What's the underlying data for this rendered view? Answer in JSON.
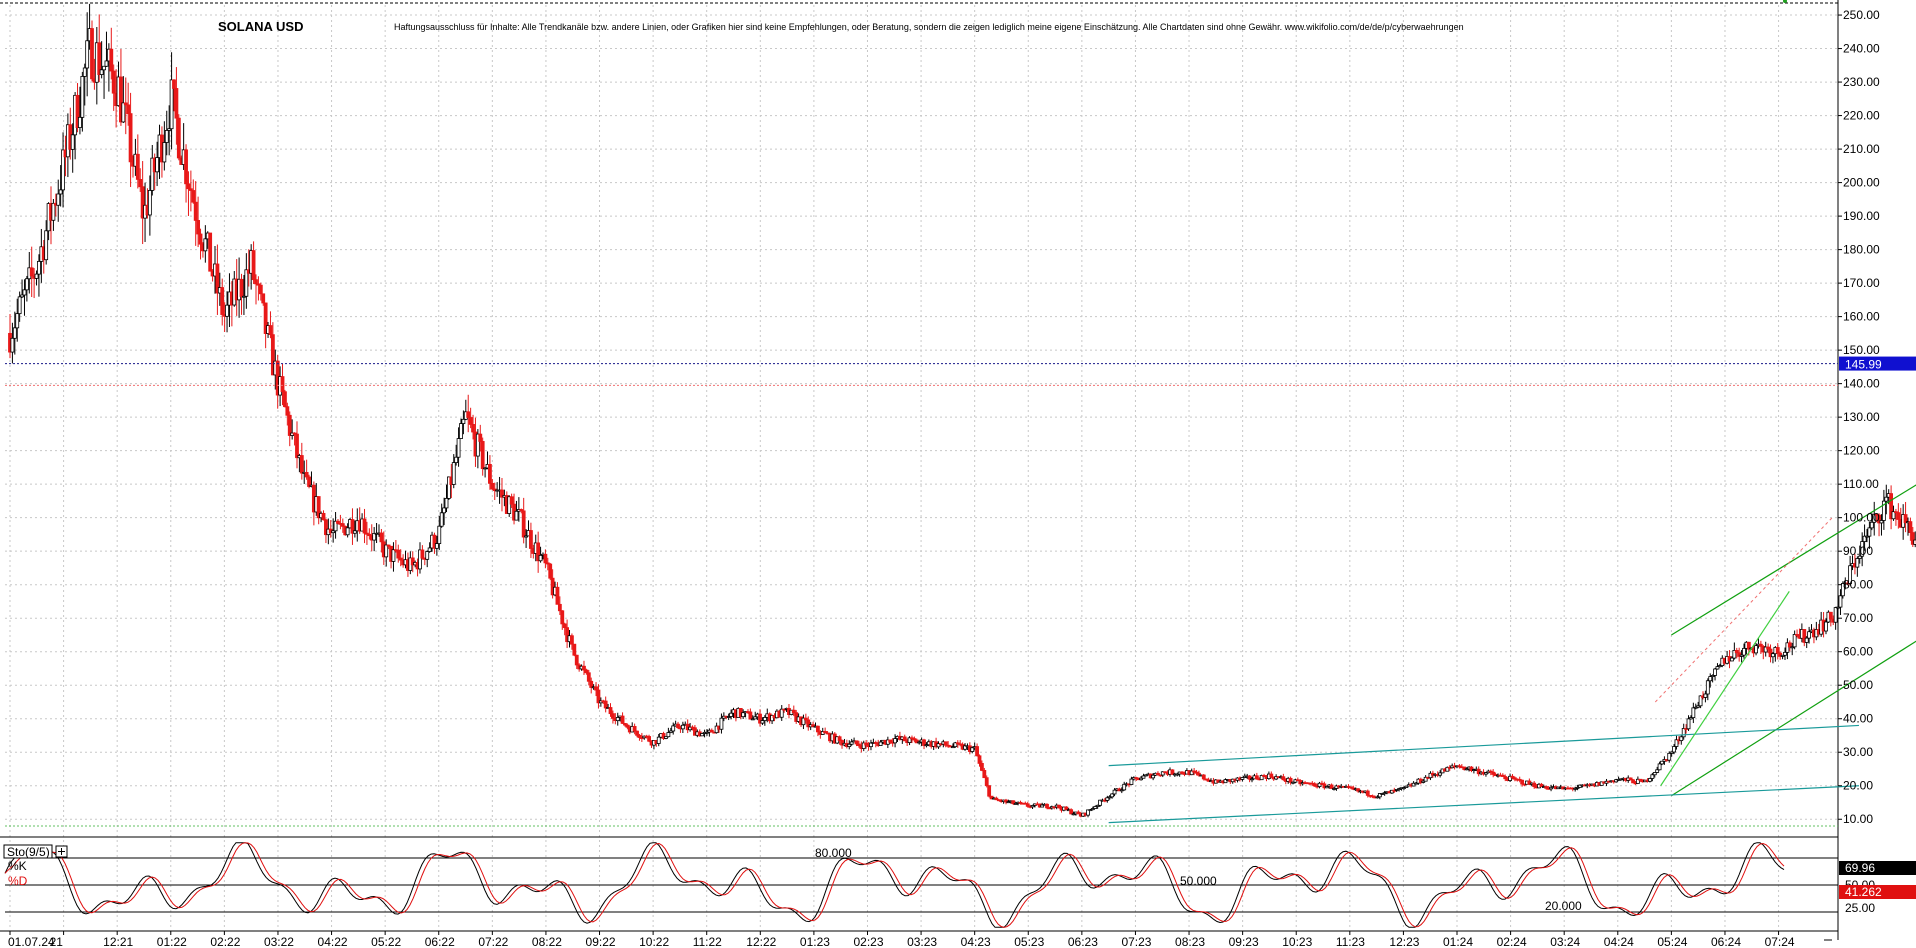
{
  "chart_data": [
    {
      "type": "candlestick",
      "title": "SOLANA USD",
      "disclaimer": "Haftungsausschluss für Inhalte: Alle Trendkanäle bzw. andere Linien, oder Grafiken hier sind keine Empfehlungen, oder Beratung, sondern die zeigen lediglich meine eigene Einschätzung. Alle Chartdaten sind ohne Gewähr.  www.wikifolio.com/de/de/p/cyberwaehrungen",
      "ylim": [
        5,
        253
      ],
      "y_ticks": [
        10,
        20,
        30,
        40,
        50,
        60,
        70,
        80,
        90,
        100,
        110,
        120,
        130,
        140,
        150,
        160,
        170,
        180,
        190,
        200,
        210,
        220,
        230,
        240,
        250
      ],
      "y_tick_labels": [
        "10.00",
        "20.00",
        "30.00",
        "40.00",
        "50.00",
        "60.00",
        "70.00",
        "80.00",
        "90.00",
        "100.00",
        "110.00",
        "120.00",
        "130.00",
        "140.00",
        "150.00",
        "160.00",
        "170.00",
        "180.00",
        "190.00",
        "200.00",
        "210.00",
        "220.00",
        "230.00",
        "240.00",
        "250.00"
      ],
      "x_labels": [
        "01.07.24",
        "21",
        "12:21",
        "01:22",
        "02:22",
        "03:22",
        "04:22",
        "05:22",
        "06:22",
        "07:22",
        "08:22",
        "09:22",
        "10:22",
        "11:22",
        "12:22",
        "01:23",
        "02:23",
        "03:23",
        "04:23",
        "05:23",
        "06:23",
        "07:23",
        "08:23",
        "09:23",
        "10:23",
        "11:23",
        "12:23",
        "01:24",
        "02:24",
        "03:24",
        "04:24",
        "05:24",
        "06:24",
        "07:24"
      ],
      "price_path": [
        [
          0,
          155
        ],
        [
          0.5,
          175
        ],
        [
          1,
          205
        ],
        [
          1.5,
          240
        ],
        [
          2,
          230
        ],
        [
          2.5,
          190
        ],
        [
          3,
          225
        ],
        [
          3.5,
          190
        ],
        [
          4,
          160
        ],
        [
          4.5,
          175
        ],
        [
          5,
          140
        ],
        [
          5.5,
          110
        ],
        [
          6,
          95
        ],
        [
          6.5,
          100
        ],
        [
          7,
          90
        ],
        [
          7.5,
          85
        ],
        [
          8,
          95
        ],
        [
          8.5,
          130
        ],
        [
          9,
          110
        ],
        [
          9.5,
          100
        ],
        [
          10,
          85
        ],
        [
          10.5,
          60
        ],
        [
          11,
          45
        ],
        [
          11.5,
          38
        ],
        [
          12,
          33
        ],
        [
          12.5,
          38
        ],
        [
          13,
          35
        ],
        [
          13.5,
          42
        ],
        [
          14,
          40
        ],
        [
          14.5,
          42
        ],
        [
          15,
          37
        ],
        [
          15.5,
          33
        ],
        [
          16,
          32
        ],
        [
          16.5,
          34
        ],
        [
          17,
          33
        ],
        [
          17.5,
          32
        ],
        [
          18,
          31
        ],
        [
          18.3,
          16
        ],
        [
          19,
          14
        ],
        [
          19.5,
          14
        ],
        [
          20,
          11
        ],
        [
          20.5,
          17
        ],
        [
          21,
          22
        ],
        [
          21.5,
          24
        ],
        [
          22,
          24
        ],
        [
          22.5,
          21
        ],
        [
          23,
          22
        ],
        [
          23.5,
          23
        ],
        [
          24,
          21
        ],
        [
          24.5,
          20
        ],
        [
          25,
          19
        ],
        [
          25.5,
          17
        ],
        [
          26,
          19
        ],
        [
          26.5,
          23
        ],
        [
          27,
          26
        ],
        [
          27.5,
          24
        ],
        [
          28,
          22
        ],
        [
          28.5,
          20
        ],
        [
          29,
          19
        ],
        [
          29.5,
          20
        ],
        [
          30,
          22
        ],
        [
          30.5,
          21
        ],
        [
          31,
          30
        ],
        [
          31.5,
          45
        ],
        [
          32,
          58
        ],
        [
          32.5,
          62
        ],
        [
          33,
          60
        ],
        [
          33.5,
          65
        ],
        [
          34,
          70
        ],
        [
          34.5,
          90
        ],
        [
          35,
          105
        ],
        [
          35.5,
          95
        ],
        [
          36,
          85
        ],
        [
          36.5,
          95
        ],
        [
          37,
          100
        ],
        [
          37.5,
          102
        ],
        [
          38,
          110
        ],
        [
          38.5,
          105
        ],
        [
          39,
          130
        ],
        [
          39.5,
          145
        ],
        [
          40,
          170
        ],
        [
          40.5,
          185
        ],
        [
          41,
          190
        ],
        [
          41.5,
          185
        ],
        [
          42,
          170
        ],
        [
          42.5,
          150
        ],
        [
          43,
          135
        ],
        [
          43.5,
          145
        ],
        [
          44,
          155
        ],
        [
          44.5,
          145
        ],
        [
          45,
          175
        ],
        [
          45.5,
          170
        ],
        [
          46,
          160
        ],
        [
          46.5,
          145
        ],
        [
          47,
          130
        ],
        [
          47.5,
          140
        ],
        [
          48,
          146
        ]
      ],
      "trend_channels": [
        {
          "color": "#10a010",
          "start": [
            31,
            65
          ],
          "end": [
            41,
            163
          ]
        },
        {
          "color": "#10a010",
          "start": [
            31,
            17
          ],
          "end": [
            41,
            118
          ]
        },
        {
          "color": "#1a9a9a",
          "start": [
            20.5,
            26
          ],
          "end": [
            34.5,
            38
          ]
        },
        {
          "color": "#1a9a9a",
          "start": [
            20.5,
            9
          ],
          "end": [
            34.5,
            20
          ]
        }
      ],
      "current_price_label": "145.99",
      "reference_level": 139.5
    },
    {
      "type": "line",
      "indicator_label": "Sto(9/5)",
      "ylim": [
        0,
        100
      ],
      "levels": [
        {
          "value": 80,
          "label": "80.000"
        },
        {
          "value": 50,
          "label": "50.000"
        },
        {
          "value": 20,
          "label": "20.000"
        }
      ],
      "series": [
        {
          "name": "%K",
          "color": "#000000",
          "last_value_label": "69.96"
        },
        {
          "name": "%D",
          "color": "#e01010",
          "last_value_label": "41.262"
        }
      ],
      "axis_labels": [
        "50.00",
        "25.00"
      ]
    }
  ]
}
